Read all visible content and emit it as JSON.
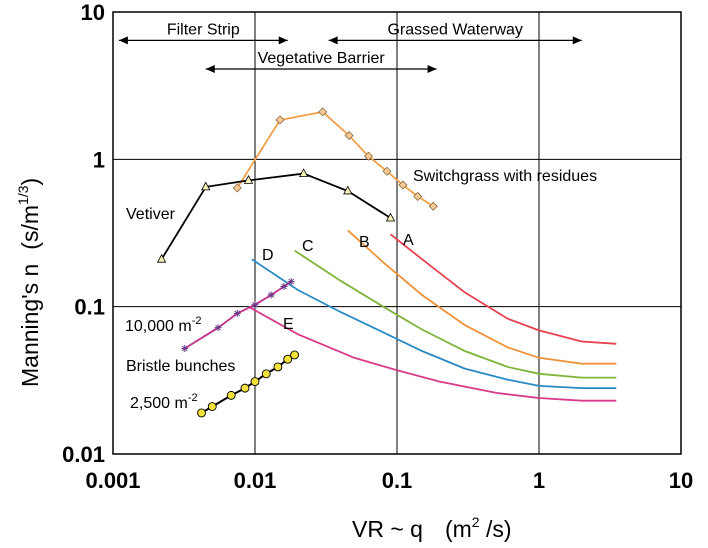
{
  "chart_data": {
    "type": "line",
    "title": "",
    "xlabel": "VR ~ q",
    "xunit_base": "(m",
    "xunit_exp": "2",
    "xunit_tail": " /s)",
    "ylabel": "Manning's  n",
    "yunit_base": "(s/m",
    "yunit_exp": "1/3",
    "yunit_tail": ")",
    "xscale": "log",
    "yscale": "log",
    "xlim": [
      0.001,
      10
    ],
    "ylim": [
      0.01,
      10
    ],
    "grid": true,
    "xticks": [
      "0.001",
      "0.01",
      "0.1",
      "1",
      "10"
    ],
    "yticks": [
      "0.01",
      "0.1",
      "1",
      "10"
    ],
    "ranges": [
      {
        "label": "Filter Strip",
        "x_from": 0.0011,
        "x_to": 0.017,
        "y": 7.5
      },
      {
        "label": "Grassed Waterway",
        "x_from": 0.033,
        "x_to": 2.0,
        "y": 7.5
      },
      {
        "label": "Vegetative Barrier",
        "x_from": 0.0045,
        "x_to": 0.19,
        "y": 4.8
      }
    ],
    "series": [
      {
        "name": "Switchgrass with residues",
        "color": "#f2a04a",
        "marker": "diamond",
        "x": [
          0.0075,
          0.015,
          0.03,
          0.046,
          0.063,
          0.085,
          0.11,
          0.14,
          0.18
        ],
        "y": [
          0.64,
          1.85,
          2.1,
          1.45,
          1.05,
          0.83,
          0.67,
          0.56,
          0.48
        ]
      },
      {
        "name": "Vetiver",
        "color": "#000000",
        "marker": "triangle",
        "x": [
          0.0022,
          0.0045,
          0.009,
          0.022,
          0.045,
          0.09
        ],
        "y": [
          0.21,
          0.65,
          0.72,
          0.8,
          0.61,
          0.4
        ]
      },
      {
        "name": "A",
        "color": "#e8404c",
        "marker": "none",
        "x": [
          0.09,
          0.15,
          0.3,
          0.6,
          1.0,
          2.0,
          3.5
        ],
        "y": [
          0.31,
          0.21,
          0.125,
          0.083,
          0.069,
          0.058,
          0.056
        ]
      },
      {
        "name": "B",
        "color": "#f0923a",
        "marker": "none",
        "x": [
          0.045,
          0.08,
          0.15,
          0.3,
          0.6,
          1.0,
          2.0,
          3.5
        ],
        "y": [
          0.33,
          0.2,
          0.12,
          0.075,
          0.053,
          0.045,
          0.041,
          0.041
        ]
      },
      {
        "name": "C",
        "color": "#7fb43a",
        "marker": "none",
        "x": [
          0.019,
          0.04,
          0.08,
          0.15,
          0.3,
          0.6,
          1.0,
          2.0,
          3.5
        ],
        "y": [
          0.24,
          0.15,
          0.1,
          0.07,
          0.05,
          0.039,
          0.035,
          0.033,
          0.033
        ]
      },
      {
        "name": "D",
        "color": "#2a8ac4",
        "marker": "none",
        "x": [
          0.0095,
          0.02,
          0.04,
          0.08,
          0.15,
          0.3,
          0.6,
          1.0,
          2.0,
          3.5
        ],
        "y": [
          0.21,
          0.13,
          0.092,
          0.067,
          0.05,
          0.038,
          0.032,
          0.029,
          0.028,
          0.028
        ]
      },
      {
        "name": "E",
        "color": "#d93a8a",
        "marker": "none",
        "x": [
          0.009,
          0.02,
          0.05,
          0.1,
          0.2,
          0.5,
          1.0,
          2.0,
          3.5
        ],
        "y": [
          0.1,
          0.065,
          0.045,
          0.037,
          0.031,
          0.026,
          0.024,
          0.023,
          0.023
        ]
      },
      {
        "name": "10,000 m-2",
        "color": "#c0308a",
        "marker": "star",
        "x": [
          0.0032,
          0.0055,
          0.0075,
          0.01,
          0.013,
          0.016,
          0.018
        ],
        "y": [
          0.052,
          0.072,
          0.09,
          0.103,
          0.12,
          0.137,
          0.148
        ]
      },
      {
        "name": "2,500 m-2",
        "color": "#000000",
        "marker": "circle",
        "x": [
          0.0042,
          0.005,
          0.0068,
          0.0085,
          0.01,
          0.012,
          0.0145,
          0.017,
          0.019
        ],
        "y": [
          0.019,
          0.021,
          0.025,
          0.028,
          0.031,
          0.035,
          0.039,
          0.044,
          0.047
        ]
      }
    ],
    "annotations": {
      "switchgrass": "Switchgrass with residues",
      "vetiver": "Vetiver",
      "A": "A",
      "B": "B",
      "C": "C",
      "D": "D",
      "E": "E",
      "ten_thousand": "10,000 m",
      "ten_thousand_exp": "-2",
      "bristle": "Bristle bunches",
      "two_five_hundred": "2,500 m",
      "two_five_hundred_exp": "-2"
    }
  }
}
